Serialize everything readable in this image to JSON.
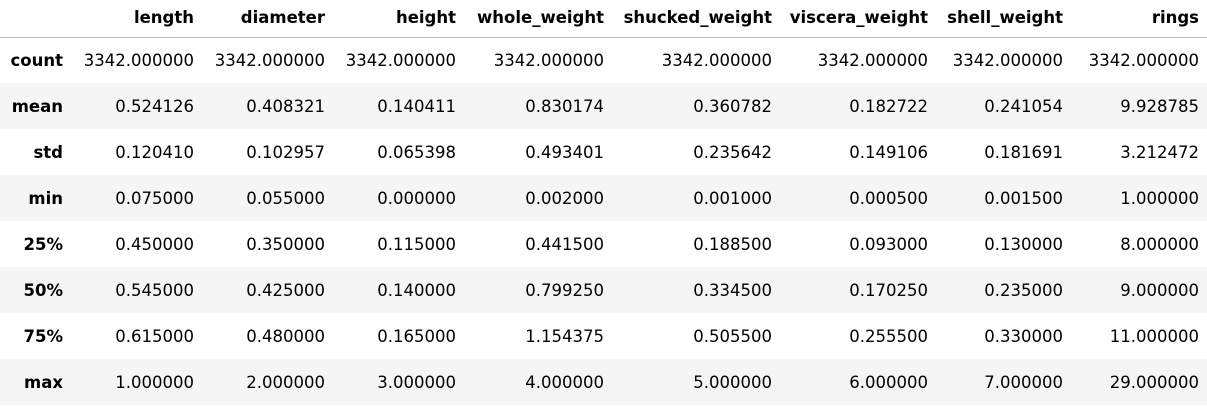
{
  "table": {
    "index_header": "",
    "columns": [
      "length",
      "diameter",
      "height",
      "whole_weight",
      "shucked_weight",
      "viscera_weight",
      "shell_weight",
      "rings"
    ],
    "rows": [
      {
        "label": "count",
        "values": [
          "3342.000000",
          "3342.000000",
          "3342.000000",
          "3342.000000",
          "3342.000000",
          "3342.000000",
          "3342.000000",
          "3342.000000"
        ]
      },
      {
        "label": "mean",
        "values": [
          "0.524126",
          "0.408321",
          "0.140411",
          "0.830174",
          "0.360782",
          "0.182722",
          "0.241054",
          "9.928785"
        ]
      },
      {
        "label": "std",
        "values": [
          "0.120410",
          "0.102957",
          "0.065398",
          "0.493401",
          "0.235642",
          "0.149106",
          "0.181691",
          "3.212472"
        ]
      },
      {
        "label": "min",
        "values": [
          "0.075000",
          "0.055000",
          "0.000000",
          "0.002000",
          "0.001000",
          "0.000500",
          "0.001500",
          "1.000000"
        ]
      },
      {
        "label": "25%",
        "values": [
          "0.450000",
          "0.350000",
          "0.115000",
          "0.441500",
          "0.188500",
          "0.093000",
          "0.130000",
          "8.000000"
        ]
      },
      {
        "label": "50%",
        "values": [
          "0.545000",
          "0.425000",
          "0.140000",
          "0.799250",
          "0.334500",
          "0.170250",
          "0.235000",
          "9.000000"
        ]
      },
      {
        "label": "75%",
        "values": [
          "0.615000",
          "0.480000",
          "0.165000",
          "1.154375",
          "0.505500",
          "0.255500",
          "0.330000",
          "11.000000"
        ]
      },
      {
        "label": "max",
        "values": [
          "1.000000",
          "2.000000",
          "3.000000",
          "4.000000",
          "5.000000",
          "6.000000",
          "7.000000",
          "29.000000"
        ]
      }
    ]
  }
}
